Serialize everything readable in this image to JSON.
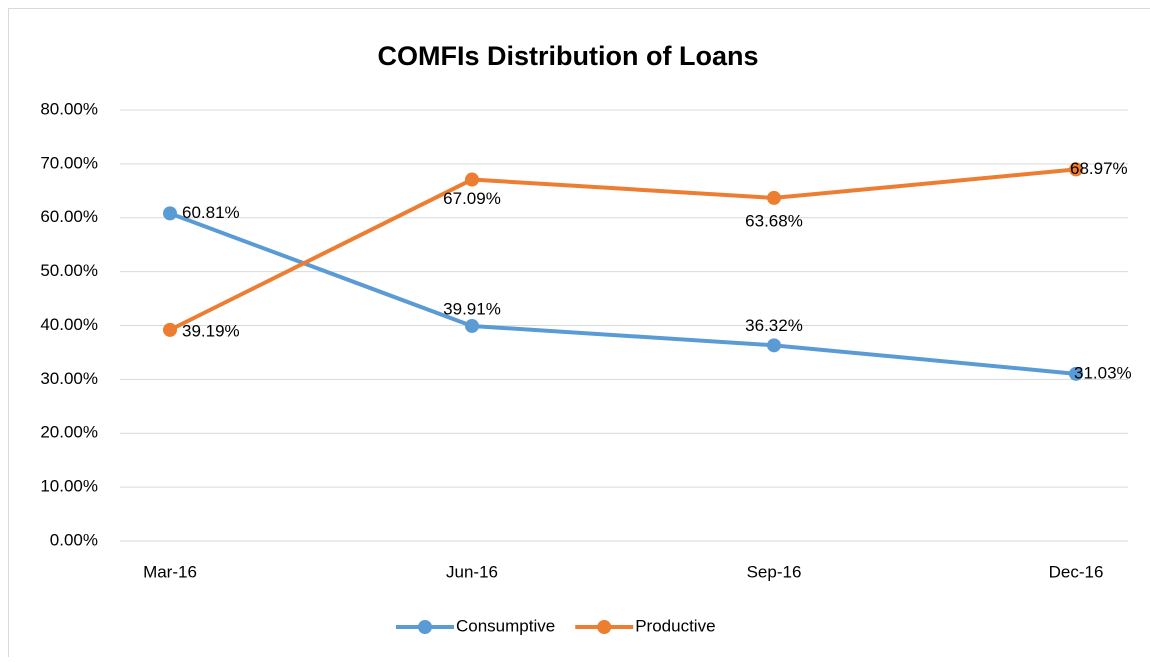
{
  "chart_data": {
    "type": "line",
    "title": "COMFIs Distribution of Loans",
    "categories": [
      "Mar-16",
      "Jun-16",
      "Sep-16",
      "Dec-16"
    ],
    "series": [
      {
        "name": "Consumptive",
        "color": "#5b9bd5",
        "values": [
          60.81,
          39.91,
          36.32,
          31.03
        ],
        "value_labels": [
          "60.81%",
          "39.91%",
          "36.32%",
          "31.03%"
        ]
      },
      {
        "name": "Productive",
        "color": "#ed7d31",
        "values": [
          39.19,
          67.09,
          63.68,
          68.97
        ],
        "value_labels": [
          "39.19%",
          "67.09%",
          "63.68%",
          "68.97%"
        ]
      }
    ],
    "ylim": [
      0,
      80
    ],
    "yticks": [
      {
        "value": 0,
        "label": "0.00%"
      },
      {
        "value": 10,
        "label": "10.00%"
      },
      {
        "value": 20,
        "label": "20.00%"
      },
      {
        "value": 30,
        "label": "30.00%"
      },
      {
        "value": 40,
        "label": "40.00%"
      },
      {
        "value": 50,
        "label": "50.00%"
      },
      {
        "value": 60,
        "label": "60.00%"
      },
      {
        "value": 70,
        "label": "70.00%"
      },
      {
        "value": 80,
        "label": "80.00%"
      }
    ],
    "grid": true,
    "legend": "bottom"
  }
}
